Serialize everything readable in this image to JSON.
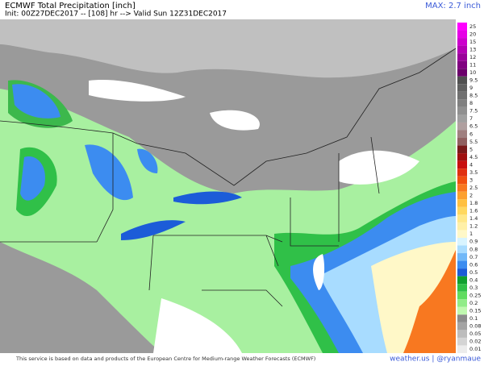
{
  "header": {
    "title": "ECMWF Total Precipitation [inch]",
    "init": "Init: 00Z27DEC2017 -- [108] hr --> Valid Sun 12Z31DEC2017",
    "max": "MAX: 2.7 inch"
  },
  "legend": [
    {
      "value": 25,
      "color": "#ff00ff"
    },
    {
      "value": 20,
      "color": "#e600e6"
    },
    {
      "value": 15,
      "color": "#cc00cc"
    },
    {
      "value": 13,
      "color": "#b300b3"
    },
    {
      "value": 12,
      "color": "#990099"
    },
    {
      "value": 11,
      "color": "#800080"
    },
    {
      "value": 10,
      "color": "#6b006b"
    },
    {
      "value": 9.5,
      "color": "#505050"
    },
    {
      "value": 9,
      "color": "#606060"
    },
    {
      "value": 8.5,
      "color": "#707070"
    },
    {
      "value": 8,
      "color": "#808080"
    },
    {
      "value": 7.5,
      "color": "#909090"
    },
    {
      "value": 7,
      "color": "#a0a0a0"
    },
    {
      "value": 6.5,
      "color": "#b0a0a0"
    },
    {
      "value": 6,
      "color": "#a08080"
    },
    {
      "value": 5.5,
      "color": "#906060"
    },
    {
      "value": 5,
      "color": "#7a1a1a"
    },
    {
      "value": 4.5,
      "color": "#a01010"
    },
    {
      "value": 4,
      "color": "#c81010"
    },
    {
      "value": 3.5,
      "color": "#e03010"
    },
    {
      "value": 3,
      "color": "#f05010"
    },
    {
      "value": 2.5,
      "color": "#f87820"
    },
    {
      "value": 2,
      "color": "#fca030"
    },
    {
      "value": 1.8,
      "color": "#ffc040"
    },
    {
      "value": 1.6,
      "color": "#ffd860"
    },
    {
      "value": 1.4,
      "color": "#ffe88a"
    },
    {
      "value": 1.2,
      "color": "#fff0a8"
    },
    {
      "value": 1,
      "color": "#fff8c8"
    },
    {
      "value": 0.9,
      "color": "#d8f4ff"
    },
    {
      "value": 0.8,
      "color": "#a8dcff"
    },
    {
      "value": 0.7,
      "color": "#70b8f8"
    },
    {
      "value": 0.6,
      "color": "#3c8cf0"
    },
    {
      "value": 0.5,
      "color": "#1c5cd8"
    },
    {
      "value": 0.4,
      "color": "#10a030"
    },
    {
      "value": 0.3,
      "color": "#30c048"
    },
    {
      "value": 0.25,
      "color": "#60dc60"
    },
    {
      "value": 0.2,
      "color": "#90ec88"
    },
    {
      "value": 0.15,
      "color": "#c0f8b0"
    },
    {
      "value": 0.1,
      "color": "#8c8c8c"
    },
    {
      "value": 0.08,
      "color": "#a4a4a4"
    },
    {
      "value": 0.05,
      "color": "#bcbcbc"
    },
    {
      "value": 0.02,
      "color": "#d4d4d4"
    },
    {
      "value": 0.01,
      "color": "#ececec"
    }
  ],
  "footer": {
    "note": "This service is based on data and products of the European Centre for Medium-range Weather Forecasts (ECMWF)",
    "credit": "weather.us | @ryanmaue"
  }
}
